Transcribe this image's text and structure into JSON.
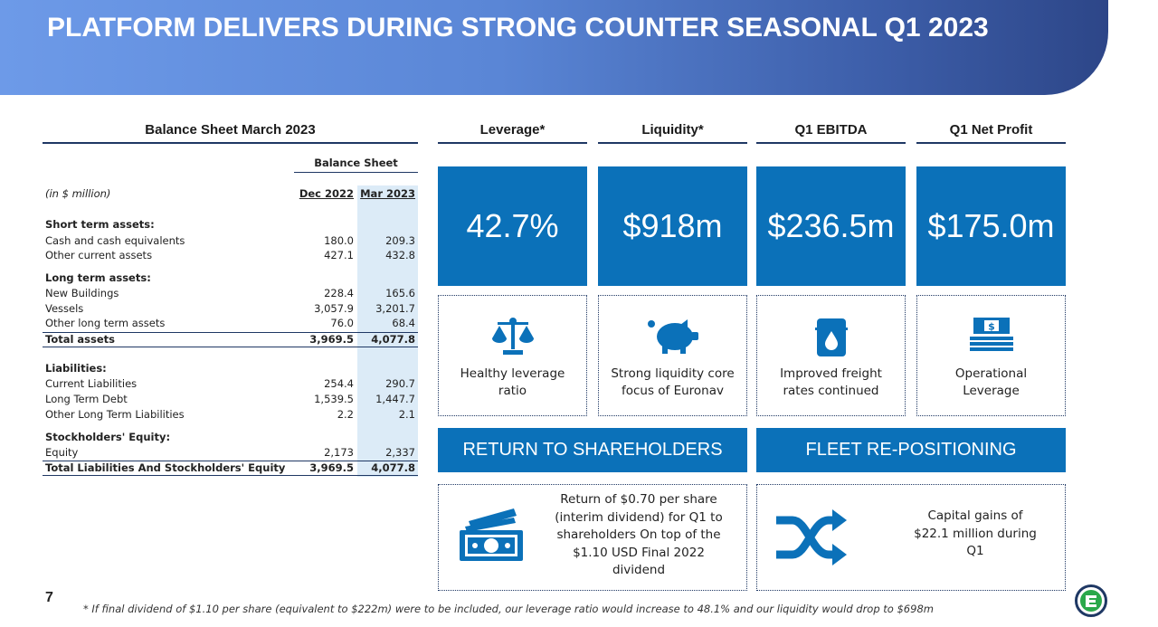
{
  "title": "PLATFORM DELIVERS DURING STRONG COUNTER SEASONAL Q1 2023",
  "balance": {
    "heading": "Balance Sheet March 2023",
    "group": "Balance Sheet",
    "unit": "(in $ million)",
    "columns": [
      "Dec 2022",
      "Mar 2023"
    ],
    "rows": [
      {
        "label": "Short term assets:"
      },
      {
        "label": "Cash and cash equivalents",
        "values": [
          "180.0",
          "209.3"
        ]
      },
      {
        "label": "Other current assets",
        "values": [
          "427.1",
          "432.8"
        ]
      },
      {
        "label": "Long term assets:"
      },
      {
        "label": "New Buildings",
        "values": [
          "228.4",
          "165.6"
        ]
      },
      {
        "label": "Vessels",
        "values": [
          "3,057.9",
          "3,201.7"
        ]
      },
      {
        "label": "Other long term assets",
        "values": [
          "76.0",
          "68.4"
        ]
      },
      {
        "label": "Total assets",
        "values": [
          "3,969.5",
          "4,077.8"
        ],
        "total": true
      },
      {
        "label": "Liabilities:"
      },
      {
        "label": "Current Liabilities",
        "values": [
          "254.4",
          "290.7"
        ]
      },
      {
        "label": "Long Term Debt",
        "values": [
          "1,539.5",
          "1,447.7"
        ]
      },
      {
        "label": "Other Long Term Liabilities",
        "values": [
          "2.2",
          "2.1"
        ]
      },
      {
        "label": "Stockholders' Equity:"
      },
      {
        "label": "Equity",
        "values": [
          "2,173",
          "2,337"
        ]
      },
      {
        "label": "Total Liabilities And Stockholders' Equity",
        "values": [
          "3,969.5",
          "4,077.8"
        ],
        "total": true
      }
    ]
  },
  "kpis": [
    {
      "heading": "Leverage*",
      "value": "42.7%",
      "caption": "Healthy leverage ratio"
    },
    {
      "heading": "Liquidity*",
      "value": "$918m",
      "caption": "Strong liquidity core focus of Euronav"
    },
    {
      "heading": "Q1 EBITDA",
      "value": "$236.5m",
      "caption": "Improved freight rates continued"
    },
    {
      "heading": "Q1 Net Profit",
      "value": "$175.0m",
      "caption": "Operational Leverage"
    }
  ],
  "panels": [
    {
      "heading": "RETURN TO SHAREHOLDERS",
      "text": "Return of $0.70 per share (interim dividend) for Q1 to shareholders On top of the $1.10 USD Final 2022 dividend"
    },
    {
      "heading": "FLEET RE-POSITIONING",
      "text": "Capital gains of $22.1 million during Q1"
    }
  ],
  "page_number": "7",
  "footnote": "* If final dividend of $1.10 per share (equivalent to $222m) were to be included, our leverage ratio would increase to 48.1% and our liquidity would drop to $698m"
}
